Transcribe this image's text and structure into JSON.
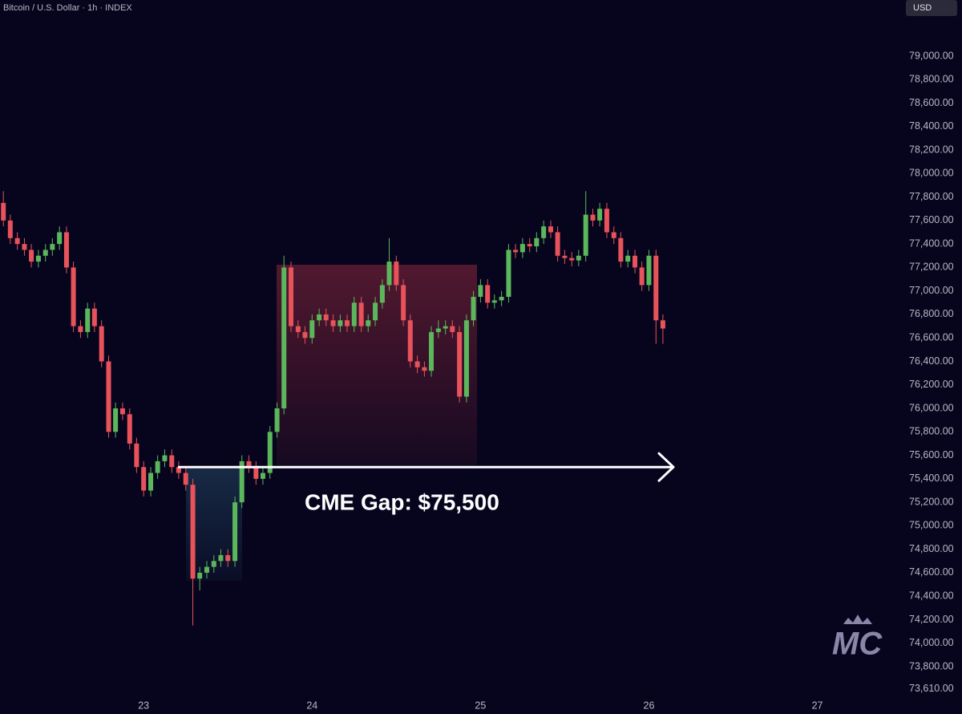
{
  "header": {
    "symbol": "Bitcoin / U.S. Dollar · 1h · INDEX",
    "currency": "USD"
  },
  "watermark": "MC",
  "chart_data": {
    "type": "candlestick",
    "up_color": "#5cb65c",
    "down_color": "#e8525a",
    "annotations": [
      {
        "text": "CME Gap: $75,500",
        "value": 75500
      }
    ],
    "xlim": [
      22.147,
      27.502
    ],
    "xticks": [
      23,
      24,
      25,
      26,
      27
    ],
    "ylim": [
      73397,
      79478
    ],
    "yticks": [
      {
        "value": 79000,
        "label": "79,000.00"
      },
      {
        "value": 78800,
        "label": "78,800.00"
      },
      {
        "value": 78600,
        "label": "78,600.00"
      },
      {
        "value": 78400,
        "label": "78,400.00"
      },
      {
        "value": 78200,
        "label": "78,200.00"
      },
      {
        "value": 78000,
        "label": "78,000.00"
      },
      {
        "value": 77800,
        "label": "77,800.00"
      },
      {
        "value": 77600,
        "label": "77,600.00"
      },
      {
        "value": 77400,
        "label": "77,400.00"
      },
      {
        "value": 77200,
        "label": "77,200.00"
      },
      {
        "value": 77000,
        "label": "77,000.00"
      },
      {
        "value": 76800,
        "label": "76,800.00"
      },
      {
        "value": 76600,
        "label": "76,600.00"
      },
      {
        "value": 76400,
        "label": "76,400.00"
      },
      {
        "value": 76200,
        "label": "76,200.00"
      },
      {
        "value": 76000,
        "label": "76,000.00"
      },
      {
        "value": 75800,
        "label": "75,800.00"
      },
      {
        "value": 75600,
        "label": "75,600.00"
      },
      {
        "value": 75400,
        "label": "75,400.00"
      },
      {
        "value": 75200,
        "label": "75,200.00"
      },
      {
        "value": 75000,
        "label": "75,000.00"
      },
      {
        "value": 74800,
        "label": "74,800.00"
      },
      {
        "value": 74600,
        "label": "74,600.00"
      },
      {
        "value": 74400,
        "label": "74,400.00"
      },
      {
        "value": 74200,
        "label": "74,200.00"
      },
      {
        "value": 74000,
        "label": "74,000.00"
      },
      {
        "value": 73800,
        "label": "73,800.00"
      },
      {
        "value": 73610,
        "label": "73,610.00"
      }
    ],
    "x": [
      22.167,
      22.208,
      22.25,
      22.292,
      22.333,
      22.375,
      22.417,
      22.458,
      22.5,
      22.542,
      22.583,
      22.625,
      22.667,
      22.708,
      22.75,
      22.792,
      22.833,
      22.875,
      22.917,
      22.958,
      23,
      23.042,
      23.083,
      23.125,
      23.167,
      23.208,
      23.25,
      23.292,
      23.333,
      23.375,
      23.417,
      23.458,
      23.5,
      23.542,
      23.583,
      23.625,
      23.667,
      23.708,
      23.75,
      23.792,
      23.833,
      23.875,
      23.917,
      23.958,
      24,
      24.042,
      24.083,
      24.125,
      24.167,
      24.208,
      24.25,
      24.292,
      24.333,
      24.375,
      24.417,
      24.458,
      24.5,
      24.542,
      24.583,
      24.625,
      24.667,
      24.708,
      24.75,
      24.792,
      24.833,
      24.875,
      24.917,
      24.958,
      25,
      25.042,
      25.083,
      25.125,
      25.167,
      25.208,
      25.25,
      25.292,
      25.333,
      25.375,
      25.417,
      25.458,
      25.5,
      25.542,
      25.583,
      25.625,
      25.667,
      25.708,
      25.75,
      25.792,
      25.833,
      25.875,
      25.917,
      25.958,
      26,
      26.042,
      26.083
    ],
    "open": [
      77750,
      77600,
      77450,
      77400,
      77350,
      77250,
      77300,
      77350,
      77400,
      77500,
      77200,
      76700,
      76650,
      76850,
      76700,
      76400,
      75800,
      76000,
      75950,
      75700,
      75500,
      75300,
      75450,
      75550,
      75600,
      75500,
      75450,
      75350,
      74550,
      74600,
      74650,
      74700,
      74750,
      74700,
      75200,
      75550,
      75500,
      75400,
      75450,
      75800,
      76000,
      77200,
      76700,
      76650,
      76600,
      76750,
      76800,
      76750,
      76700,
      76750,
      76700,
      76900,
      76700,
      76750,
      76900,
      77050,
      77250,
      77050,
      76750,
      76400,
      76350,
      76320,
      76650,
      76680,
      76700,
      76650,
      76100,
      76750,
      76950,
      77050,
      76900,
      76920,
      76950,
      77350,
      77330,
      77400,
      77380,
      77450,
      77550,
      77500,
      77300,
      77280,
      77260,
      77300,
      77650,
      77600,
      77700,
      77500,
      77450,
      77250,
      77300,
      77200,
      77050,
      77300,
      76750
    ],
    "high": [
      77850,
      77650,
      77500,
      77450,
      77400,
      77350,
      77400,
      77450,
      77550,
      77550,
      77250,
      76750,
      76900,
      76900,
      76750,
      76450,
      76050,
      76050,
      76000,
      75750,
      75550,
      75500,
      75600,
      75650,
      75650,
      75550,
      75500,
      75400,
      74650,
      74700,
      74750,
      74800,
      74800,
      75250,
      75600,
      75600,
      75550,
      75500,
      75850,
      76050,
      77300,
      77250,
      76750,
      76700,
      76800,
      76850,
      76850,
      76800,
      76800,
      76800,
      76950,
      76950,
      76800,
      76950,
      77100,
      77450,
      77300,
      77100,
      76800,
      76450,
      76400,
      76700,
      76750,
      76750,
      76750,
      76700,
      76800,
      77000,
      77100,
      77100,
      76970,
      77000,
      77400,
      77400,
      77450,
      77450,
      77500,
      77600,
      77600,
      77550,
      77350,
      77330,
      77350,
      77850,
      77700,
      77750,
      77750,
      77550,
      77500,
      77350,
      77350,
      77250,
      77350,
      77350,
      76800
    ],
    "low": [
      77550,
      77400,
      77350,
      77300,
      77200,
      77200,
      77250,
      77300,
      77350,
      77150,
      76650,
      76600,
      76600,
      76650,
      76350,
      75750,
      75750,
      75900,
      75650,
      75450,
      75250,
      75250,
      75400,
      75500,
      75450,
      75400,
      75300,
      74150,
      74450,
      74550,
      74600,
      74650,
      74650,
      74650,
      75150,
      75450,
      75350,
      75350,
      75400,
      75750,
      75950,
      76650,
      76600,
      76550,
      76550,
      76700,
      76700,
      76650,
      76650,
      76650,
      76650,
      76650,
      76650,
      76700,
      76850,
      77000,
      77000,
      76700,
      76350,
      76300,
      76270,
      76270,
      76600,
      76630,
      76600,
      76050,
      76050,
      76700,
      76900,
      76850,
      76850,
      76870,
      76900,
      77280,
      77280,
      77330,
      77330,
      77400,
      77450,
      77250,
      77230,
      77210,
      77210,
      77250,
      77550,
      77550,
      77450,
      77400,
      77200,
      77200,
      77150,
      77000,
      77000,
      76550,
      76550
    ],
    "close": [
      77600,
      77450,
      77400,
      77350,
      77250,
      77300,
      77350,
      77400,
      77500,
      77200,
      76700,
      76650,
      76850,
      76700,
      76400,
      75800,
      76000,
      75950,
      75700,
      75500,
      75300,
      75450,
      75550,
      75600,
      75500,
      75450,
      75350,
      74550,
      74600,
      74650,
      74700,
      74750,
      74700,
      75200,
      75550,
      75500,
      75400,
      75450,
      75800,
      76000,
      77200,
      76700,
      76650,
      76600,
      76750,
      76800,
      76750,
      76700,
      76750,
      76700,
      76900,
      76700,
      76750,
      76900,
      77050,
      77250,
      77050,
      76750,
      76400,
      76350,
      76320,
      76650,
      76680,
      76700,
      76650,
      76100,
      76750,
      76950,
      77050,
      76900,
      76920,
      76950,
      77350,
      77330,
      77400,
      77380,
      77450,
      77550,
      77500,
      77300,
      77280,
      77260,
      77300,
      77650,
      77600,
      77700,
      77500,
      77450,
      77250,
      77300,
      77200,
      77050,
      77300,
      76750,
      76680
    ]
  }
}
